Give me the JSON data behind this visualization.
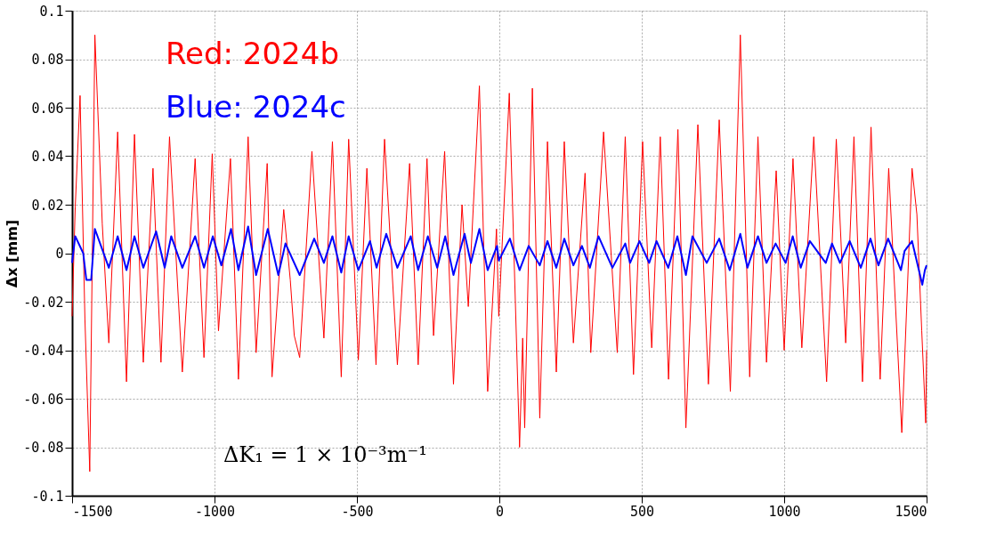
{
  "chart_data": {
    "type": "line",
    "ylabel": "Δx  [mm]",
    "annotations": [
      "ΔK₁ = 1 × 10⁻³m⁻¹"
    ],
    "xlim": [
      -1500,
      1500
    ],
    "xticks": [
      -1500,
      -1000,
      -500,
      0,
      500,
      1000,
      1500
    ],
    "ylim": [
      -0.1,
      0.1
    ],
    "yticks": [
      -0.1,
      -0.08,
      -0.06,
      -0.04,
      -0.02,
      0,
      0.02,
      0.04,
      0.06,
      0.08,
      0.1
    ],
    "grid": true,
    "line_style": "solid",
    "marker": "none",
    "series": [
      {
        "name": "Red: 2024b",
        "color": "#ff0000",
        "x": [
          -1500,
          -1489,
          -1472,
          -1455,
          -1438,
          -1420,
          -1394,
          -1371,
          -1340,
          -1309,
          -1281,
          -1250,
          -1216,
          -1188,
          -1158,
          -1113,
          -1068,
          -1037,
          -1008,
          -986,
          -944,
          -916,
          -882,
          -854,
          -815,
          -798,
          -757,
          -734,
          -720,
          -701,
          -658,
          -616,
          -586,
          -555,
          -529,
          -495,
          -465,
          -433,
          -403,
          -358,
          -315,
          -285,
          -254,
          -231,
          -192,
          -161,
          -131,
          -109,
          -70,
          -41,
          -10,
          -2,
          35,
          71,
          82,
          89,
          116,
          142,
          169,
          200,
          228,
          260,
          301,
          321,
          366,
          414,
          442,
          471,
          503,
          535,
          565,
          594,
          627,
          655,
          697,
          734,
          772,
          811,
          846,
          879,
          908,
          938,
          972,
          1000,
          1031,
          1062,
          1104,
          1149,
          1183,
          1216,
          1245,
          1275,
          1305,
          1337,
          1367,
          1413,
          1449,
          1466,
          1483,
          1497,
          1500
        ],
        "values": [
          -0.026,
          0.019,
          0.065,
          -0.027,
          -0.09,
          0.09,
          0.012,
          -0.037,
          0.05,
          -0.053,
          0.049,
          -0.045,
          0.035,
          -0.045,
          0.048,
          -0.049,
          0.039,
          -0.043,
          0.041,
          -0.032,
          0.039,
          -0.052,
          0.048,
          -0.041,
          0.037,
          -0.051,
          0.018,
          -0.011,
          -0.034,
          -0.043,
          0.042,
          -0.035,
          0.046,
          -0.051,
          0.047,
          -0.044,
          0.035,
          -0.046,
          0.047,
          -0.046,
          0.037,
          -0.046,
          0.039,
          -0.034,
          0.042,
          -0.054,
          0.02,
          -0.022,
          0.069,
          -0.057,
          0.01,
          -0.026,
          0.066,
          -0.08,
          -0.035,
          -0.072,
          0.068,
          -0.068,
          0.046,
          -0.049,
          0.046,
          -0.037,
          0.033,
          -0.041,
          0.05,
          -0.041,
          0.048,
          -0.05,
          0.046,
          -0.039,
          0.048,
          -0.052,
          0.051,
          -0.072,
          0.053,
          -0.054,
          0.055,
          -0.057,
          0.09,
          -0.051,
          0.048,
          -0.045,
          0.034,
          -0.04,
          0.039,
          -0.039,
          0.048,
          -0.053,
          0.047,
          -0.037,
          0.048,
          -0.053,
          0.052,
          -0.052,
          0.035,
          -0.074,
          0.035,
          0.016,
          -0.032,
          -0.07,
          -0.04
        ]
      },
      {
        "name": "Blue: 2024c",
        "color": "#0000ff",
        "x": [
          -1500,
          -1489,
          -1461,
          -1450,
          -1433,
          -1420,
          -1371,
          -1340,
          -1309,
          -1281,
          -1250,
          -1205,
          -1175,
          -1152,
          -1113,
          -1068,
          -1037,
          -1006,
          -976,
          -942,
          -916,
          -882,
          -854,
          -813,
          -776,
          -751,
          -701,
          -650,
          -616,
          -586,
          -555,
          -529,
          -495,
          -454,
          -431,
          -397,
          -358,
          -311,
          -285,
          -251,
          -218,
          -190,
          -161,
          -122,
          -100,
          -70,
          -41,
          -8,
          -2,
          37,
          71,
          103,
          142,
          169,
          200,
          228,
          260,
          290,
          318,
          348,
          397,
          442,
          459,
          492,
          526,
          552,
          593,
          625,
          655,
          678,
          728,
          772,
          809,
          846,
          871,
          908,
          938,
          970,
          1005,
          1030,
          1058,
          1090,
          1146,
          1168,
          1196,
          1230,
          1269,
          1303,
          1331,
          1365,
          1410,
          1423,
          1449,
          1485,
          1494,
          1500
        ],
        "values": [
          -0.004,
          0.007,
          0.0,
          -0.011,
          -0.011,
          0.01,
          -0.006,
          0.007,
          -0.007,
          0.007,
          -0.006,
          0.009,
          -0.006,
          0.007,
          -0.006,
          0.007,
          -0.006,
          0.007,
          -0.005,
          0.01,
          -0.007,
          0.011,
          -0.009,
          0.01,
          -0.009,
          0.004,
          -0.009,
          0.006,
          -0.004,
          0.007,
          -0.008,
          0.007,
          -0.007,
          0.005,
          -0.006,
          0.008,
          -0.006,
          0.007,
          -0.007,
          0.007,
          -0.006,
          0.007,
          -0.009,
          0.008,
          -0.004,
          0.01,
          -0.007,
          0.003,
          -0.003,
          0.006,
          -0.007,
          0.003,
          -0.005,
          0.005,
          -0.006,
          0.006,
          -0.005,
          0.003,
          -0.006,
          0.007,
          -0.006,
          0.004,
          -0.004,
          0.005,
          -0.004,
          0.005,
          -0.006,
          0.007,
          -0.009,
          0.007,
          -0.004,
          0.006,
          -0.007,
          0.008,
          -0.006,
          0.007,
          -0.004,
          0.004,
          -0.004,
          0.007,
          -0.006,
          0.005,
          -0.004,
          0.004,
          -0.004,
          0.005,
          -0.006,
          0.006,
          -0.005,
          0.006,
          -0.007,
          0.001,
          0.005,
          -0.013,
          -0.007,
          -0.005
        ]
      }
    ]
  }
}
